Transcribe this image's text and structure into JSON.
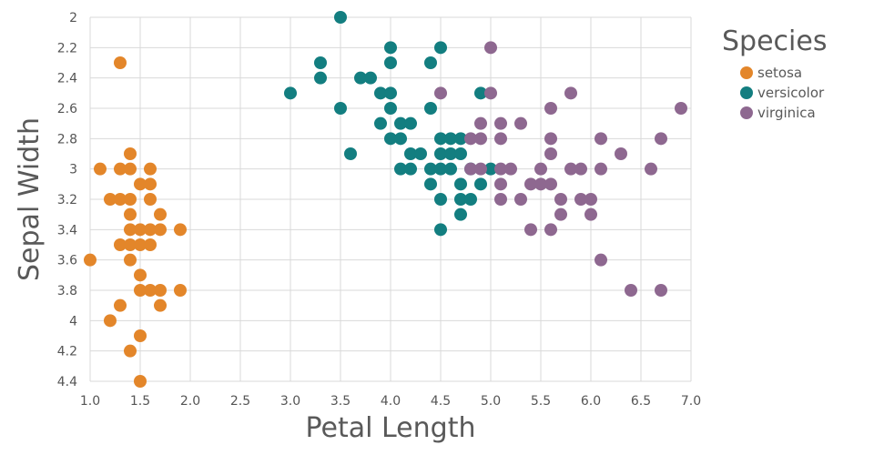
{
  "chart_data": {
    "type": "scatter",
    "xlabel": "Petal Length",
    "ylabel": "Sepal Width",
    "xlim": [
      1.0,
      7.0
    ],
    "ylim": [
      2.0,
      4.4
    ],
    "y_inverted": true,
    "x_ticks": [
      "1.0",
      "1.5",
      "2.0",
      "2.5",
      "3.0",
      "3.5",
      "4.0",
      "4.5",
      "5.0",
      "5.5",
      "6.0",
      "6.5",
      "7.0"
    ],
    "y_ticks": [
      "2",
      "2.2",
      "2.4",
      "2.6",
      "2.8",
      "3",
      "3.2",
      "3.4",
      "3.6",
      "3.8",
      "4",
      "4.2",
      "4.4"
    ],
    "grid": true,
    "legend": {
      "title": "Species",
      "placement": "right"
    },
    "series": [
      {
        "name": "setosa",
        "color": "#e3862a",
        "points": [
          [
            1.3,
            2.3
          ],
          [
            1.1,
            3.0
          ],
          [
            1.3,
            3.0
          ],
          [
            1.4,
            3.0
          ],
          [
            1.6,
            3.0
          ],
          [
            1.4,
            2.9
          ],
          [
            1.5,
            3.1
          ],
          [
            1.6,
            3.1
          ],
          [
            1.2,
            3.2
          ],
          [
            1.3,
            3.2
          ],
          [
            1.4,
            3.2
          ],
          [
            1.6,
            3.2
          ],
          [
            1.4,
            3.3
          ],
          [
            1.7,
            3.3
          ],
          [
            1.4,
            3.4
          ],
          [
            1.5,
            3.4
          ],
          [
            1.6,
            3.4
          ],
          [
            1.7,
            3.4
          ],
          [
            1.9,
            3.4
          ],
          [
            1.3,
            3.5
          ],
          [
            1.4,
            3.5
          ],
          [
            1.5,
            3.5
          ],
          [
            1.6,
            3.5
          ],
          [
            1.0,
            3.6
          ],
          [
            1.4,
            3.6
          ],
          [
            1.5,
            3.7
          ],
          [
            1.5,
            3.8
          ],
          [
            1.6,
            3.8
          ],
          [
            1.7,
            3.8
          ],
          [
            1.9,
            3.8
          ],
          [
            1.3,
            3.9
          ],
          [
            1.7,
            3.9
          ],
          [
            1.2,
            4.0
          ],
          [
            1.5,
            4.1
          ],
          [
            1.4,
            4.2
          ],
          [
            1.5,
            4.4
          ]
        ]
      },
      {
        "name": "versicolor",
        "color": "#137e80",
        "points": [
          [
            3.5,
            2.0
          ],
          [
            4.0,
            2.2
          ],
          [
            4.5,
            2.2
          ],
          [
            3.3,
            2.3
          ],
          [
            4.0,
            2.3
          ],
          [
            4.4,
            2.3
          ],
          [
            3.3,
            2.4
          ],
          [
            3.7,
            2.4
          ],
          [
            3.8,
            2.4
          ],
          [
            3.0,
            2.5
          ],
          [
            3.9,
            2.5
          ],
          [
            4.0,
            2.5
          ],
          [
            4.9,
            2.5
          ],
          [
            3.5,
            2.6
          ],
          [
            4.0,
            2.6
          ],
          [
            4.4,
            2.6
          ],
          [
            3.9,
            2.7
          ],
          [
            4.1,
            2.7
          ],
          [
            4.2,
            2.7
          ],
          [
            4.0,
            2.8
          ],
          [
            4.1,
            2.8
          ],
          [
            4.5,
            2.8
          ],
          [
            4.6,
            2.8
          ],
          [
            4.7,
            2.8
          ],
          [
            3.6,
            2.9
          ],
          [
            4.2,
            2.9
          ],
          [
            4.3,
            2.9
          ],
          [
            4.5,
            2.9
          ],
          [
            4.6,
            2.9
          ],
          [
            4.7,
            2.9
          ],
          [
            4.1,
            3.0
          ],
          [
            4.2,
            3.0
          ],
          [
            4.4,
            3.0
          ],
          [
            4.5,
            3.0
          ],
          [
            4.6,
            3.0
          ],
          [
            4.8,
            3.0
          ],
          [
            5.0,
            3.0
          ],
          [
            4.4,
            3.1
          ],
          [
            4.7,
            3.1
          ],
          [
            4.9,
            3.1
          ],
          [
            4.5,
            3.2
          ],
          [
            4.7,
            3.2
          ],
          [
            4.8,
            3.2
          ],
          [
            4.7,
            3.3
          ],
          [
            4.5,
            3.4
          ]
        ]
      },
      {
        "name": "virginica",
        "color": "#8e6890",
        "points": [
          [
            5.0,
            2.2
          ],
          [
            4.5,
            2.5
          ],
          [
            5.0,
            2.5
          ],
          [
            5.8,
            2.5
          ],
          [
            5.6,
            2.6
          ],
          [
            6.9,
            2.6
          ],
          [
            4.9,
            2.7
          ],
          [
            5.1,
            2.7
          ],
          [
            5.3,
            2.7
          ],
          [
            4.8,
            2.8
          ],
          [
            4.9,
            2.8
          ],
          [
            5.1,
            2.8
          ],
          [
            5.6,
            2.8
          ],
          [
            6.1,
            2.8
          ],
          [
            6.7,
            2.8
          ],
          [
            5.6,
            2.9
          ],
          [
            6.3,
            2.9
          ],
          [
            4.8,
            3.0
          ],
          [
            4.9,
            3.0
          ],
          [
            5.1,
            3.0
          ],
          [
            5.2,
            3.0
          ],
          [
            5.5,
            3.0
          ],
          [
            5.8,
            3.0
          ],
          [
            5.9,
            3.0
          ],
          [
            6.1,
            3.0
          ],
          [
            6.6,
            3.0
          ],
          [
            5.1,
            3.1
          ],
          [
            5.4,
            3.1
          ],
          [
            5.5,
            3.1
          ],
          [
            5.6,
            3.1
          ],
          [
            5.1,
            3.2
          ],
          [
            5.3,
            3.2
          ],
          [
            5.7,
            3.2
          ],
          [
            5.9,
            3.2
          ],
          [
            6.0,
            3.2
          ],
          [
            5.7,
            3.3
          ],
          [
            6.0,
            3.3
          ],
          [
            5.4,
            3.4
          ],
          [
            5.6,
            3.4
          ],
          [
            6.1,
            3.6
          ],
          [
            6.4,
            3.8
          ],
          [
            6.7,
            3.8
          ]
        ]
      }
    ]
  }
}
